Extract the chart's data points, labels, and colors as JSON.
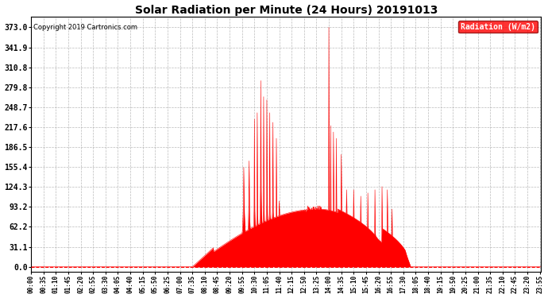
{
  "title": "Solar Radiation per Minute (24 Hours) 20191013",
  "copyright_text": "Copyright 2019 Cartronics.com",
  "legend_label": "Radiation (W/m2)",
  "fill_color": "#FF0000",
  "line_color": "#FF0000",
  "background_color": "#FFFFFF",
  "grid_color": "#AAAAAA",
  "yticks": [
    0.0,
    31.1,
    62.2,
    93.2,
    124.3,
    155.4,
    186.5,
    217.6,
    248.7,
    279.8,
    310.8,
    341.9,
    373.0
  ],
  "ymax": 390,
  "ymin": -8,
  "total_minutes": 1440,
  "sunrise_minute": 455,
  "sunset_minute": 1075,
  "peak_minute": 840,
  "peak_value": 373.0,
  "tick_step": 35
}
